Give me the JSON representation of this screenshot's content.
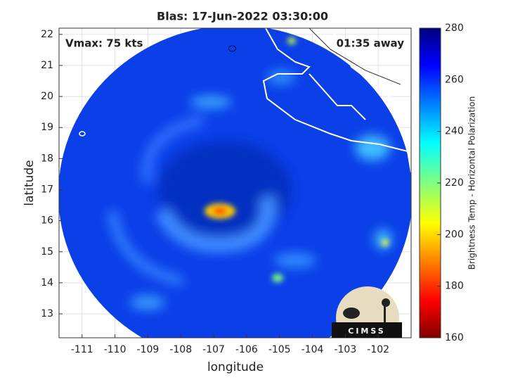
{
  "chart_data": {
    "type": "map",
    "title": "Blas: 17-Jun-2022 03:30:00",
    "annotations": [
      "Vmax: 75 kts",
      "01:35 away"
    ],
    "xlabel": "longitude",
    "ylabel": "latitude",
    "xlim": [
      -111.7,
      -101.0
    ],
    "xticks": [
      -111,
      -110,
      -109,
      -108,
      -107,
      -106,
      -105,
      -104,
      -103,
      -102
    ],
    "ylim": [
      12.23,
      22.2
    ],
    "yticks": [
      13,
      14,
      15,
      16,
      17,
      18,
      19,
      20,
      21,
      22
    ],
    "grid": true,
    "colorbar": {
      "label": "Brightness Temp - Horizontal Polarization",
      "lim": [
        160,
        280
      ],
      "ticks": [
        160,
        180,
        200,
        220,
        240,
        260,
        280
      ]
    },
    "logo": "CIMSS"
  }
}
